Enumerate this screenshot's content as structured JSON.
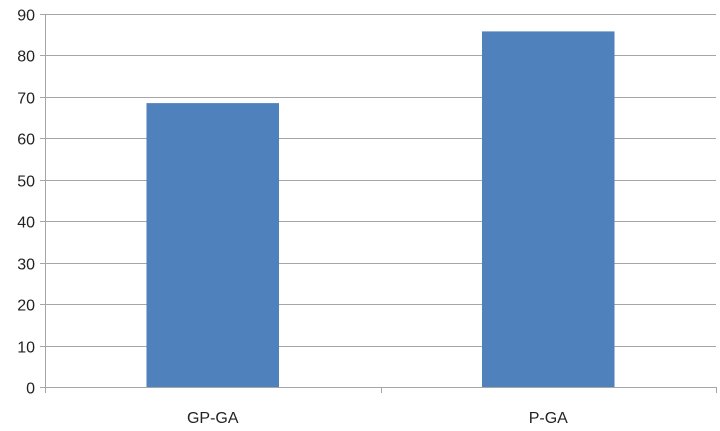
{
  "chart_data": {
    "type": "bar",
    "title": "",
    "xlabel": "",
    "ylabel": "",
    "categories": [
      "GP-GA",
      "P-GA"
    ],
    "values": [
      68.5,
      85.8
    ],
    "ylim": [
      0,
      90
    ],
    "yticks": [
      0,
      10,
      20,
      30,
      40,
      50,
      60,
      70,
      80,
      90
    ],
    "grid": true,
    "legend": "none"
  },
  "colors": {
    "bar": "#4f81bd",
    "grid": "#a6a6a6",
    "axis": "#a6a6a6",
    "text": "#222222"
  }
}
